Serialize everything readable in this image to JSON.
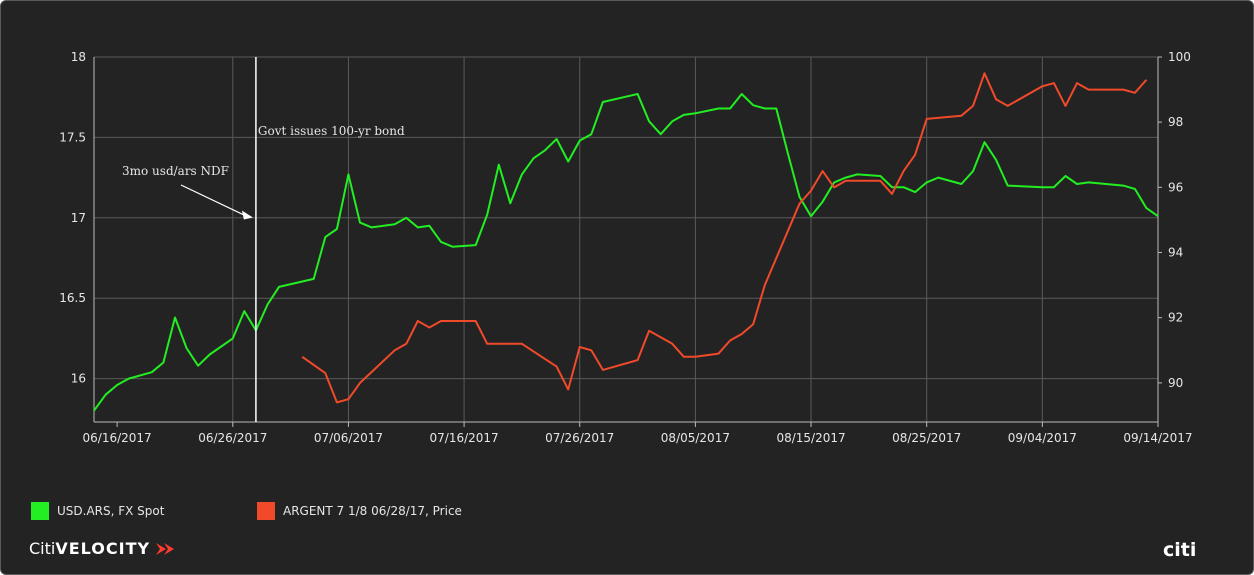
{
  "chart_data": {
    "type": "line",
    "x_ticks": [
      "06/16/2017",
      "06/26/2017",
      "07/06/2017",
      "07/16/2017",
      "07/26/2017",
      "08/05/2017",
      "08/15/2017",
      "08/25/2017",
      "09/04/2017",
      "09/14/2017"
    ],
    "x_range": [
      "06/14/2017",
      "09/14/2017"
    ],
    "y_left": {
      "ticks": [
        "16",
        "16.5",
        "17",
        "17.5",
        "18"
      ],
      "ylim": [
        15.73,
        18.0
      ]
    },
    "y_right": {
      "ticks": [
        "90",
        "92",
        "94",
        "96",
        "98",
        "100"
      ],
      "ylim": [
        88.8,
        100.0
      ]
    },
    "grid": true,
    "legend_position": "bottom-left",
    "series": [
      {
        "name": "USD.ARS, FX Spot",
        "axis": "left",
        "color": "#22ee22",
        "x": [
          "06/14/2017",
          "06/15/2017",
          "06/16/2017",
          "06/17/2017",
          "06/19/2017",
          "06/20/2017",
          "06/21/2017",
          "06/22/2017",
          "06/23/2017",
          "06/24/2017",
          "06/26/2017",
          "06/27/2017",
          "06/28/2017",
          "06/29/2017",
          "06/30/2017",
          "07/03/2017",
          "07/04/2017",
          "07/05/2017",
          "07/06/2017",
          "07/07/2017",
          "07/08/2017",
          "07/10/2017",
          "07/11/2017",
          "07/12/2017",
          "07/13/2017",
          "07/14/2017",
          "07/15/2017",
          "07/17/2017",
          "07/18/2017",
          "07/19/2017",
          "07/20/2017",
          "07/21/2017",
          "07/22/2017",
          "07/23/2017",
          "07/24/2017",
          "07/25/2017",
          "07/26/2017",
          "07/27/2017",
          "07/28/2017",
          "07/31/2017",
          "08/01/2017",
          "08/02/2017",
          "08/03/2017",
          "08/04/2017",
          "08/05/2017",
          "08/07/2017",
          "08/08/2017",
          "08/09/2017",
          "08/10/2017",
          "08/11/2017",
          "08/12/2017",
          "08/13/2017",
          "08/14/2017",
          "08/15/2017",
          "08/16/2017",
          "08/17/2017",
          "08/18/2017",
          "08/19/2017",
          "08/21/2017",
          "08/22/2017",
          "08/23/2017",
          "08/24/2017",
          "08/25/2017",
          "08/26/2017",
          "08/28/2017",
          "08/29/2017",
          "08/30/2017",
          "08/31/2017",
          "09/01/2017",
          "09/04/2017",
          "09/05/2017",
          "09/06/2017",
          "09/07/2017",
          "09/08/2017",
          "09/11/2017",
          "09/12/2017",
          "09/13/2017",
          "09/14/2017"
        ],
        "values": [
          15.8,
          15.9,
          15.96,
          16.0,
          16.04,
          16.1,
          16.38,
          16.19,
          16.08,
          16.15,
          16.25,
          16.42,
          16.3,
          16.46,
          16.57,
          16.62,
          16.88,
          16.93,
          17.27,
          16.97,
          16.94,
          16.96,
          17.0,
          16.94,
          16.95,
          16.85,
          16.82,
          16.83,
          17.02,
          17.33,
          17.09,
          17.27,
          17.37,
          17.42,
          17.49,
          17.35,
          17.48,
          17.52,
          17.72,
          17.77,
          17.6,
          17.52,
          17.6,
          17.64,
          17.65,
          17.68,
          17.68,
          17.77,
          17.7,
          17.68,
          17.68,
          17.4,
          17.13,
          17.01,
          17.1,
          17.22,
          17.25,
          17.27,
          17.26,
          17.19,
          17.19,
          17.16,
          17.22,
          17.25,
          17.21,
          17.29,
          17.47,
          17.36,
          17.2,
          17.19,
          17.19,
          17.26,
          17.21,
          17.22,
          17.2,
          17.18,
          17.06,
          17.01
        ]
      },
      {
        "name": "ARGENT 7 1/8 06/28/17, Price",
        "axis": "right",
        "color": "#f04a2a",
        "x": [
          "07/02/2017",
          "07/04/2017",
          "07/05/2017",
          "07/06/2017",
          "07/07/2017",
          "07/10/2017",
          "07/11/2017",
          "07/12/2017",
          "07/13/2017",
          "07/14/2017",
          "07/15/2017",
          "07/17/2017",
          "07/18/2017",
          "07/19/2017",
          "07/20/2017",
          "07/21/2017",
          "07/24/2017",
          "07/25/2017",
          "07/26/2017",
          "07/27/2017",
          "07/28/2017",
          "07/31/2017",
          "08/01/2017",
          "08/02/2017",
          "08/03/2017",
          "08/04/2017",
          "08/05/2017",
          "08/07/2017",
          "08/08/2017",
          "08/09/2017",
          "08/10/2017",
          "08/11/2017",
          "08/14/2017",
          "08/15/2017",
          "08/16/2017",
          "08/17/2017",
          "08/18/2017",
          "08/19/2017",
          "08/21/2017",
          "08/22/2017",
          "08/23/2017",
          "08/24/2017",
          "08/25/2017",
          "08/28/2017",
          "08/29/2017",
          "08/30/2017",
          "08/31/2017",
          "09/01/2017",
          "09/04/2017",
          "09/05/2017",
          "09/06/2017",
          "09/07/2017",
          "09/08/2017",
          "09/11/2017",
          "09/12/2017",
          "09/13/2017"
        ],
        "values": [
          90.8,
          90.3,
          89.4,
          89.5,
          90.0,
          91.0,
          91.2,
          91.9,
          91.7,
          91.9,
          91.9,
          91.9,
          91.2,
          91.2,
          91.2,
          91.2,
          90.5,
          89.8,
          91.1,
          91.0,
          90.4,
          90.7,
          91.6,
          91.4,
          91.2,
          90.8,
          90.8,
          90.9,
          91.3,
          91.5,
          91.8,
          93.0,
          95.5,
          95.9,
          96.5,
          96.0,
          96.2,
          96.2,
          96.2,
          95.8,
          96.5,
          97.0,
          98.1,
          98.2,
          98.5,
          99.5,
          98.7,
          98.5,
          99.1,
          99.2,
          98.5,
          99.2,
          99.0,
          99.0,
          98.9,
          99.3
        ]
      }
    ],
    "annotations": [
      {
        "text": "Govt issues 100-yr bond",
        "date": "06/28/2017",
        "kind": "vertical-line"
      },
      {
        "text": "3mo usd/ars NDF",
        "date": "06/28/2017",
        "value": 16.94,
        "kind": "arrow"
      }
    ]
  },
  "legend": [
    {
      "label": "USD.ARS, FX Spot",
      "color": "#22ee22"
    },
    {
      "label": "ARGENT 7 1/8 06/28/17, Price",
      "color": "#f04a2a"
    }
  ],
  "footer": {
    "brand_part1": "Citi",
    "brand_part2": "VELOCITY",
    "logo_text": "citi"
  },
  "colors": {
    "background": "#232323",
    "grid": "#5a5a5a",
    "text": "#e6e6e6"
  }
}
